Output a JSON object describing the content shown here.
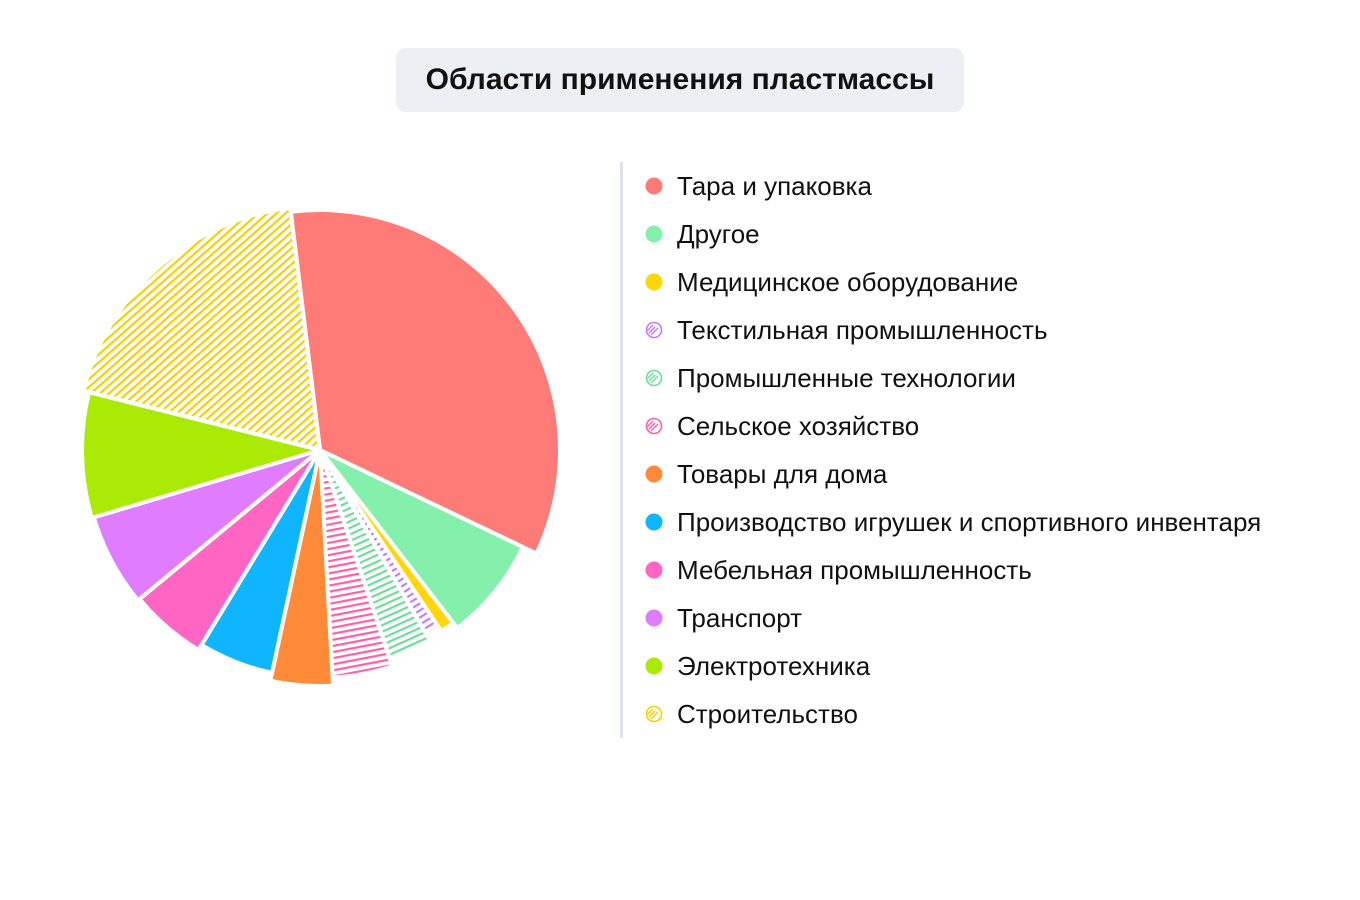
{
  "title": "Области применения пластмассы",
  "colors": {
    "background": "#ffffff",
    "title_box": "#eceff3",
    "legend_divider": "#dde2e8"
  },
  "chart_data": {
    "type": "pie",
    "title": "Области применения пластмассы",
    "legend_placement": "right",
    "slices": [
      {
        "label": "Тара и упаковка",
        "value": 32,
        "color": "#ff7b78",
        "pattern": "solid"
      },
      {
        "label": "Другое",
        "value": 7,
        "color": "#84f0ab",
        "pattern": "solid"
      },
      {
        "label": "Медицинское оборудование",
        "value": 1,
        "color": "#ffd60a",
        "pattern": "solid"
      },
      {
        "label": "Текстильная промышленность",
        "value": 1,
        "color": "#c47bff",
        "pattern": "hatched"
      },
      {
        "label": "Промышленные технологии",
        "value": 3,
        "color": "#6fdc9a",
        "pattern": "hatched"
      },
      {
        "label": "Сельское хозяйство",
        "value": 4,
        "color": "#ff5fa8",
        "pattern": "hatched"
      },
      {
        "label": "Товары для дома",
        "value": 4,
        "color": "#ff8a3a",
        "pattern": "solid"
      },
      {
        "label": "Производство игрушек и спортивного инвентаря",
        "value": 5,
        "color": "#0fb5ff",
        "pattern": "solid"
      },
      {
        "label": "Мебельная промышленность",
        "value": 5,
        "color": "#ff66c4",
        "pattern": "solid"
      },
      {
        "label": "Транспорт",
        "value": 6,
        "color": "#e07cff",
        "pattern": "solid"
      },
      {
        "label": "Электротехника",
        "value": 8,
        "color": "#aaea05",
        "pattern": "solid"
      },
      {
        "label": "Строительство",
        "value": 18,
        "color": "#f6d000",
        "pattern": "hatched"
      }
    ]
  }
}
